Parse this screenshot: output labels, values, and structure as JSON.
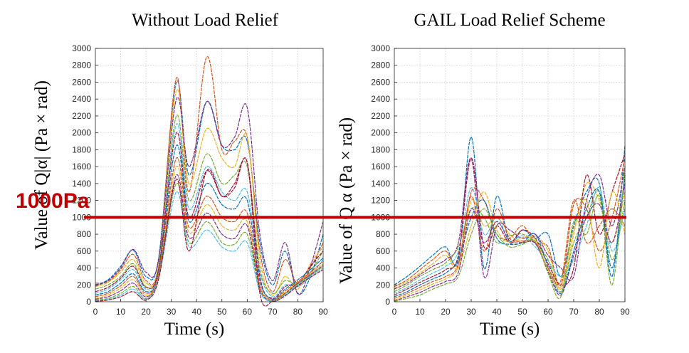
{
  "chart_data": [
    {
      "type": "line",
      "title": "Without Load Relief",
      "xlabel": "Time (s)",
      "ylabel": "Value of Q|α| (Pa × rad)",
      "xlim": [
        0,
        90
      ],
      "ylim": [
        0,
        3000
      ],
      "xticks": [
        "0",
        "10",
        "20",
        "30",
        "40",
        "50",
        "60",
        "70",
        "80",
        "90"
      ],
      "yticks": [
        "0",
        "200",
        "400",
        "600",
        "800",
        "1000",
        "1200",
        "1400",
        "1600",
        "1800",
        "2000",
        "2200",
        "2400",
        "2600",
        "2800",
        "3000"
      ],
      "grid": true,
      "x": [
        0,
        5,
        10,
        15,
        20,
        25,
        32,
        37,
        44,
        50,
        55,
        60,
        65,
        70,
        75,
        80,
        85,
        90
      ],
      "series": [
        {
          "color": "#0072BD",
          "values": [
            200,
            260,
            420,
            610,
            300,
            520,
            2600,
            1500,
            2370,
            1850,
            1800,
            1900,
            700,
            200,
            600,
            100,
            300,
            800
          ]
        },
        {
          "color": "#D95319",
          "values": [
            220,
            240,
            380,
            560,
            250,
            460,
            2650,
            1300,
            2900,
            1800,
            1900,
            1950,
            600,
            120,
            500,
            200,
            400,
            700
          ]
        },
        {
          "color": "#EDB120",
          "values": [
            180,
            230,
            350,
            500,
            220,
            440,
            2500,
            1400,
            2050,
            1700,
            1600,
            1950,
            500,
            80,
            300,
            150,
            450,
            650
          ]
        },
        {
          "color": "#7E2F8E",
          "values": [
            190,
            250,
            400,
            620,
            350,
            500,
            2400,
            1600,
            2370,
            1850,
            1950,
            2300,
            800,
            250,
            700,
            90,
            420,
            950
          ]
        },
        {
          "color": "#77AC30",
          "values": [
            150,
            200,
            300,
            450,
            180,
            400,
            2200,
            1200,
            1750,
            1400,
            1500,
            1600,
            400,
            100,
            250,
            200,
            350,
            600
          ]
        },
        {
          "color": "#4DBEEE",
          "values": [
            100,
            150,
            260,
            380,
            150,
            380,
            2100,
            1100,
            1600,
            1300,
            1200,
            1300,
            350,
            60,
            200,
            180,
            300,
            500
          ]
        },
        {
          "color": "#A2142F",
          "values": [
            120,
            170,
            280,
            420,
            170,
            390,
            2000,
            1000,
            1550,
            1250,
            1400,
            1650,
            300,
            40,
            180,
            220,
            420,
            600
          ]
        },
        {
          "color": "#0072BD",
          "values": [
            80,
            120,
            220,
            330,
            120,
            350,
            1850,
            950,
            1400,
            1150,
            1100,
            1200,
            250,
            30,
            150,
            260,
            380,
            520
          ]
        },
        {
          "color": "#D95319",
          "values": [
            60,
            100,
            190,
            300,
            100,
            330,
            1700,
            880,
            1250,
            1000,
            950,
            1050,
            200,
            20,
            130,
            240,
            350,
            480
          ]
        },
        {
          "color": "#EDB120",
          "values": [
            40,
            80,
            160,
            260,
            80,
            310,
            1600,
            820,
            1150,
            900,
            850,
            950,
            180,
            15,
            110,
            230,
            330,
            450
          ]
        },
        {
          "color": "#7E2F8E",
          "values": [
            30,
            60,
            130,
            220,
            60,
            300,
            1500,
            760,
            1050,
            800,
            750,
            900,
            160,
            10,
            100,
            220,
            320,
            430
          ]
        },
        {
          "color": "#77AC30",
          "values": [
            20,
            40,
            100,
            180,
            40,
            290,
            1400,
            700,
            950,
            700,
            680,
            800,
            140,
            8,
            90,
            210,
            310,
            420
          ]
        },
        {
          "color": "#4DBEEE",
          "values": [
            10,
            30,
            80,
            150,
            30,
            280,
            1300,
            650,
            850,
            650,
            600,
            700,
            120,
            5,
            80,
            200,
            300,
            400
          ]
        },
        {
          "color": "#A2142F",
          "values": [
            5,
            20,
            60,
            120,
            20,
            270,
            1450,
            600,
            1550,
            1250,
            1350,
            1650,
            100,
            3,
            70,
            190,
            290,
            380
          ]
        }
      ]
    },
    {
      "type": "line",
      "title": "GAIL Load Relief Scheme",
      "xlabel": "Time (s)",
      "ylabel": "Value of Q α (Pa × rad)",
      "xlim": [
        0,
        90
      ],
      "ylim": [
        0,
        3000
      ],
      "xticks": [
        "0",
        "10",
        "20",
        "30",
        "40",
        "50",
        "60",
        "70",
        "80",
        "90"
      ],
      "yticks": [
        "0",
        "200",
        "400",
        "600",
        "800",
        "1000",
        "1200",
        "1400",
        "1600",
        "1800",
        "2000",
        "2200",
        "2400",
        "2600",
        "2800",
        "3000"
      ],
      "grid": true,
      "x": [
        0,
        5,
        10,
        15,
        20,
        25,
        30,
        35,
        40,
        45,
        50,
        55,
        60,
        65,
        70,
        75,
        80,
        85,
        90
      ],
      "series": [
        {
          "color": "#0072BD",
          "values": [
            200,
            300,
            420,
            550,
            650,
            500,
            1950,
            400,
            1250,
            700,
            850,
            750,
            800,
            300,
            900,
            1300,
            1400,
            300,
            1850
          ]
        },
        {
          "color": "#D95319",
          "values": [
            180,
            260,
            380,
            500,
            600,
            450,
            1300,
            1200,
            800,
            750,
            900,
            700,
            650,
            200,
            1150,
            1100,
            600,
            1000,
            1700
          ]
        },
        {
          "color": "#EDB120",
          "values": [
            160,
            240,
            340,
            450,
            550,
            420,
            1200,
            900,
            1000,
            800,
            700,
            780,
            600,
            150,
            800,
            1400,
            1200,
            700,
            1300
          ]
        },
        {
          "color": "#7E2F8E",
          "values": [
            150,
            220,
            320,
            420,
            500,
            700,
            1700,
            300,
            900,
            850,
            750,
            800,
            550,
            400,
            300,
            1200,
            1500,
            900,
            1600
          ]
        },
        {
          "color": "#77AC30",
          "values": [
            120,
            200,
            300,
            380,
            460,
            650,
            1100,
            1000,
            700,
            780,
            800,
            700,
            500,
            120,
            700,
            1000,
            1300,
            500,
            1200
          ]
        },
        {
          "color": "#4DBEEE",
          "values": [
            100,
            170,
            260,
            340,
            420,
            600,
            1350,
            800,
            1000,
            720,
            780,
            650,
            480,
            300,
            500,
            900,
            1350,
            600,
            1100
          ]
        },
        {
          "color": "#A2142F",
          "values": [
            80,
            150,
            230,
            300,
            380,
            550,
            1700,
            650,
            900,
            700,
            850,
            750,
            450,
            200,
            400,
            1500,
            800,
            1300,
            1750
          ]
        },
        {
          "color": "#0072BD",
          "values": [
            60,
            120,
            200,
            270,
            340,
            500,
            1000,
            1200,
            750,
            680,
            700,
            800,
            420,
            100,
            600,
            1100,
            1300,
            400,
            1500
          ]
        },
        {
          "color": "#D95319",
          "values": [
            40,
            100,
            170,
            240,
            300,
            450,
            1250,
            600,
            1100,
            750,
            720,
            700,
            400,
            250,
            1200,
            700,
            900,
            1100,
            900
          ]
        },
        {
          "color": "#EDB120",
          "values": [
            20,
            80,
            140,
            210,
            270,
            400,
            900,
            1300,
            850,
            700,
            760,
            740,
            380,
            180,
            850,
            1200,
            400,
            1300,
            800
          ]
        },
        {
          "color": "#7E2F8E",
          "values": [
            10,
            60,
            110,
            180,
            240,
            350,
            1100,
            700,
            950,
            720,
            700,
            690,
            360,
            80,
            550,
            1000,
            1150,
            700,
            1400
          ]
        },
        {
          "color": "#77AC30",
          "values": [
            5,
            40,
            80,
            150,
            210,
            300,
            800,
            1100,
            800,
            650,
            680,
            720,
            340,
            60,
            950,
            800,
            1250,
            200,
            1600
          ]
        }
      ]
    }
  ],
  "threshold": {
    "label": "1000Pa",
    "value": 1000,
    "color": "#c00000"
  }
}
